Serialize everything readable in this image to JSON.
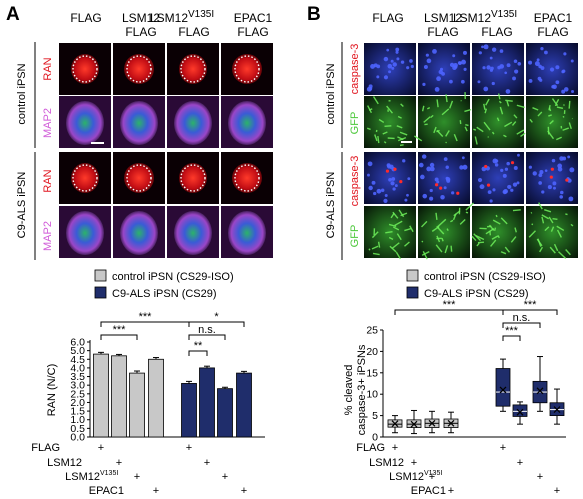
{
  "panel_a": {
    "letter": "A",
    "columns": [
      {
        "line1": "FLAG",
        "line2": "",
        "sup": ""
      },
      {
        "line1": "LSM12",
        "line2": "FLAG",
        "sup": ""
      },
      {
        "line1": "LSM12",
        "line2": "FLAG",
        "sup": "V135I"
      },
      {
        "line1": "EPAC1",
        "line2": "FLAG",
        "sup": ""
      }
    ],
    "group_labels": [
      "control iPSN",
      "C9-ALS iPSN"
    ],
    "channel_labels": [
      "RAN",
      "MAP2"
    ],
    "legend": [
      "control iPSN (CS29-ISO)",
      "C9-ALS iPSN (CS29)"
    ],
    "ylabel": "RAN (N/C)",
    "significance": [
      "***",
      "***",
      "*",
      "n.s.",
      "**"
    ]
  },
  "panel_b": {
    "letter": "B",
    "columns": [
      {
        "line1": "FLAG",
        "line2": "",
        "sup": ""
      },
      {
        "line1": "LSM12",
        "line2": "FLAG",
        "sup": ""
      },
      {
        "line1": "LSM12",
        "line2": "FLAG",
        "sup": "V135I"
      },
      {
        "line1": "EPAC1",
        "line2": "FLAG",
        "sup": ""
      }
    ],
    "group_labels": [
      "control iPSN",
      "C9-ALS iPSN"
    ],
    "channel_labels": [
      "caspase-3",
      "GFP"
    ],
    "legend": [
      "control iPSN (CS29-ISO)",
      "C9-ALS iPSN (CS29)"
    ],
    "ylabel_line1": "% cleaved",
    "ylabel_line2": "caspase-3+ iPSNs",
    "significance": [
      "***",
      "***",
      "n.s.",
      "***"
    ]
  },
  "row_labels": [
    "FLAG",
    "LSM12",
    "LSM12",
    "EPAC1"
  ],
  "row_label_sup": "V135I",
  "plus": "+",
  "colors": {
    "control": "#c8c8c8",
    "c9": "#1f2d6b",
    "ran": "#e0141e",
    "map2": "#d05ad8",
    "dapi": "#3a5bd6",
    "gfp": "#4cc83a"
  },
  "chart_data": [
    {
      "type": "bar",
      "ylabel": "RAN (N/C)",
      "ylim": [
        0,
        6.0
      ],
      "yticks": [
        "0.0",
        "0.5",
        "1.0",
        "1.5",
        "2.0",
        "2.5",
        "3.0",
        "3.5",
        "4.0",
        "4.5",
        "5.0",
        "6.0"
      ],
      "conditions": [
        "FLAG",
        "LSM12",
        "LSM12V135I",
        "EPAC1"
      ],
      "series": [
        {
          "name": "control iPSN (CS29-ISO)",
          "values": [
            4.8,
            4.7,
            3.7,
            4.5
          ],
          "errors": [
            0.1,
            0.08,
            0.12,
            0.1
          ]
        },
        {
          "name": "C9-ALS iPSN (CS29)",
          "values": [
            3.1,
            4.0,
            2.8,
            3.7
          ],
          "errors": [
            0.12,
            0.1,
            0.08,
            0.1
          ]
        }
      ]
    },
    {
      "type": "box",
      "ylabel": "% cleaved caspase-3+ iPSNs",
      "ylim": [
        0,
        25
      ],
      "yticks": [
        "0",
        "5",
        "10",
        "15",
        "20",
        "25"
      ],
      "conditions": [
        "FLAG",
        "LSM12",
        "LSM12V135I",
        "EPAC1"
      ],
      "series": [
        {
          "name": "control iPSN (CS29-ISO)",
          "boxes": [
            {
              "min": 1,
              "q1": 2.3,
              "median": 3.0,
              "mean": 3.1,
              "q3": 4.0,
              "max": 5
            },
            {
              "min": 0.8,
              "q1": 2.2,
              "median": 3.0,
              "mean": 3.0,
              "q3": 4.0,
              "max": 6.2
            },
            {
              "min": 1,
              "q1": 2.2,
              "median": 3.2,
              "mean": 3.2,
              "q3": 4.2,
              "max": 6
            },
            {
              "min": 1,
              "q1": 2.2,
              "median": 3.2,
              "mean": 3.2,
              "q3": 4.2,
              "max": 5.8
            }
          ]
        },
        {
          "name": "C9-ALS iPSN (CS29)",
          "boxes": [
            {
              "min": 6,
              "q1": 7.2,
              "median": 10.5,
              "mean": 11.0,
              "q3": 16,
              "max": 18.2
            },
            {
              "min": 3,
              "q1": 4.8,
              "median": 6.0,
              "mean": 5.8,
              "q3": 7.5,
              "max": 8.2
            },
            {
              "min": 6,
              "q1": 8.0,
              "median": 10.5,
              "mean": 10.8,
              "q3": 13,
              "max": 18.8
            },
            {
              "min": 3,
              "q1": 5.0,
              "median": 6.4,
              "mean": 6.4,
              "q3": 8.0,
              "max": 11.2
            }
          ]
        }
      ]
    }
  ]
}
